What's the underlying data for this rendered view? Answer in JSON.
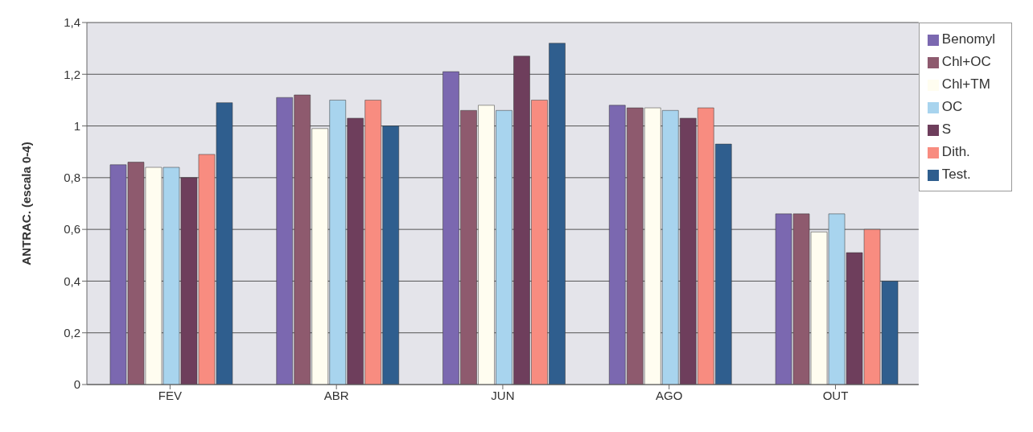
{
  "chart_data": {
    "type": "bar",
    "ylabel": "ANTRAC. (escala 0-4)",
    "categories": [
      "FEV",
      "ABR",
      "JUN",
      "AGO",
      "OUT"
    ],
    "series": [
      {
        "name": "Benomyl",
        "color": "#7b68b0",
        "values": [
          0.85,
          1.11,
          1.21,
          1.08,
          0.66
        ]
      },
      {
        "name": "Chl+OC",
        "color": "#8e5a6e",
        "values": [
          0.86,
          1.12,
          1.06,
          1.07,
          0.66
        ]
      },
      {
        "name": "Chl+TM",
        "color": "#fffdf0",
        "values": [
          0.84,
          0.99,
          1.08,
          1.07,
          0.59
        ]
      },
      {
        "name": "OC",
        "color": "#a8d4ee",
        "values": [
          0.84,
          1.1,
          1.06,
          1.06,
          0.66
        ]
      },
      {
        "name": "S",
        "color": "#6e3e5c",
        "values": [
          0.8,
          1.03,
          1.27,
          1.03,
          0.51
        ]
      },
      {
        "name": "Dith.",
        "color": "#f88c80",
        "values": [
          0.89,
          1.1,
          1.1,
          1.07,
          0.6
        ]
      },
      {
        "name": "Test.",
        "color": "#2f5e8e",
        "values": [
          1.09,
          1,
          1.32,
          0.93,
          0.4
        ]
      }
    ],
    "ylim": [
      0,
      1.4
    ],
    "yticks": [
      0,
      {
        "value": 0.2,
        "label": "0,2"
      },
      {
        "value": 0.4,
        "label": "0,4"
      },
      {
        "value": 0.6,
        "label": "0,6"
      },
      {
        "value": 0.8,
        "label": "0,8"
      },
      1,
      {
        "value": 1.2,
        "label": "1,2"
      },
      {
        "value": 1.4,
        "label": "1,4"
      }
    ],
    "grid": "y",
    "legend": "right"
  }
}
